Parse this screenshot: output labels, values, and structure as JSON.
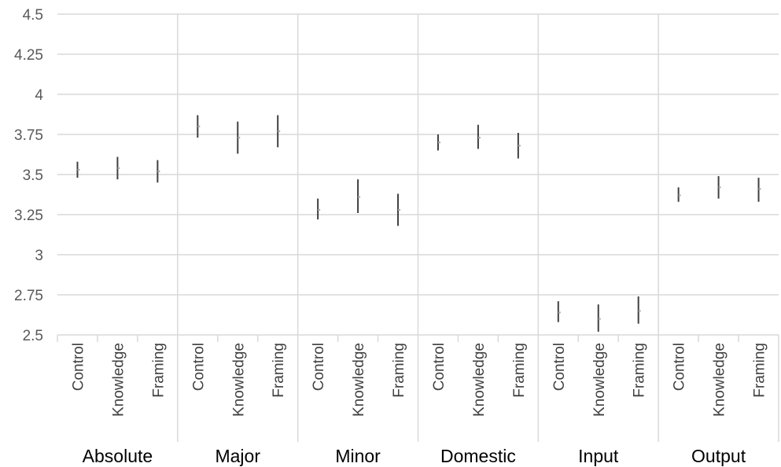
{
  "chart_data": {
    "type": "range",
    "ylim": [
      2.5,
      4.5
    ],
    "y_ticks": [
      "2.5",
      "2.75",
      "3",
      "3.25",
      "3.5",
      "3.75",
      "4",
      "4.25",
      "4.5"
    ],
    "grid": true,
    "colors": {
      "grid": "#d9d9d9",
      "range": "#404040",
      "mean": "#a6a6a6",
      "axis_text": "#595959"
    },
    "groups": [
      {
        "name": "Absolute",
        "items": [
          {
            "label": "Control",
            "low": 3.48,
            "mean": 3.53,
            "high": 3.58
          },
          {
            "label": "Knowledge",
            "low": 3.47,
            "mean": 3.54,
            "high": 3.61
          },
          {
            "label": "Framing",
            "low": 3.45,
            "mean": 3.52,
            "high": 3.59
          }
        ]
      },
      {
        "name": "Major",
        "items": [
          {
            "label": "Control",
            "low": 3.73,
            "mean": 3.8,
            "high": 3.87
          },
          {
            "label": "Knowledge",
            "low": 3.63,
            "mean": 3.73,
            "high": 3.83
          },
          {
            "label": "Framing",
            "low": 3.67,
            "mean": 3.77,
            "high": 3.87
          }
        ]
      },
      {
        "name": "Minor",
        "items": [
          {
            "label": "Control",
            "low": 3.22,
            "mean": 3.28,
            "high": 3.35
          },
          {
            "label": "Knowledge",
            "low": 3.26,
            "mean": 3.36,
            "high": 3.47
          },
          {
            "label": "Framing",
            "low": 3.18,
            "mean": 3.28,
            "high": 3.38
          }
        ]
      },
      {
        "name": "Domestic",
        "items": [
          {
            "label": "Control",
            "low": 3.65,
            "mean": 3.7,
            "high": 3.75
          },
          {
            "label": "Knowledge",
            "low": 3.66,
            "mean": 3.73,
            "high": 3.81
          },
          {
            "label": "Framing",
            "low": 3.6,
            "mean": 3.68,
            "high": 3.76
          }
        ]
      },
      {
        "name": "Input",
        "items": [
          {
            "label": "Control",
            "low": 2.58,
            "mean": 2.64,
            "high": 2.71
          },
          {
            "label": "Knowledge",
            "low": 2.52,
            "mean": 2.6,
            "high": 2.69
          },
          {
            "label": "Framing",
            "low": 2.57,
            "mean": 2.65,
            "high": 2.74
          }
        ]
      },
      {
        "name": "Output",
        "items": [
          {
            "label": "Control",
            "low": 3.33,
            "mean": 3.37,
            "high": 3.42
          },
          {
            "label": "Knowledge",
            "low": 3.35,
            "mean": 3.42,
            "high": 3.49
          },
          {
            "label": "Framing",
            "low": 3.33,
            "mean": 3.41,
            "high": 3.48
          }
        ]
      }
    ]
  }
}
